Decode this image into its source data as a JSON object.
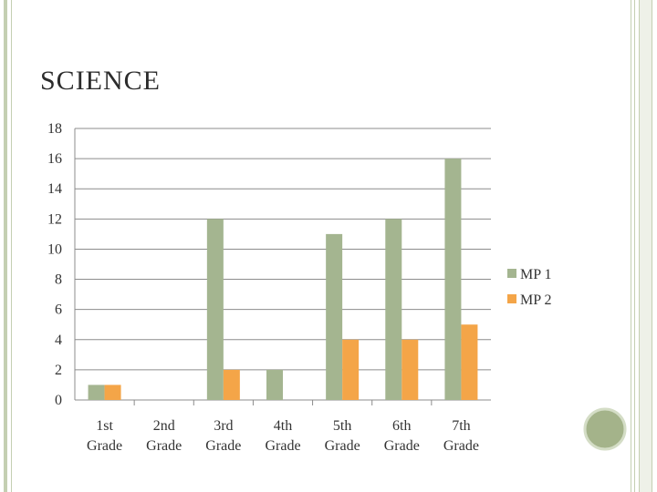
{
  "slide": {
    "title": "SCIENCE"
  },
  "colors": {
    "frame": "#b9c6a4",
    "circle": "#a4b38a",
    "circle_border": "#c8d3b5"
  },
  "chart_data": {
    "type": "bar",
    "title": "",
    "xlabel": "",
    "ylabel": "",
    "ylim": [
      0,
      18
    ],
    "yticks": [
      0,
      2,
      4,
      6,
      8,
      10,
      12,
      14,
      16,
      18
    ],
    "ytick_labels": [
      "0",
      "2",
      "4",
      "6",
      "8",
      "10",
      "12",
      "14",
      "16",
      "18"
    ],
    "categories": [
      [
        "1st",
        "Grade"
      ],
      [
        "2nd",
        "Grade"
      ],
      [
        "3rd",
        "Grade"
      ],
      [
        "4th",
        "Grade"
      ],
      [
        "5th",
        "Grade"
      ],
      [
        "6th",
        "Grade"
      ],
      [
        "7th",
        "Grade"
      ]
    ],
    "series": [
      {
        "name": "MP 1",
        "color": "#a4b590",
        "values": [
          1,
          0,
          12,
          2,
          11,
          12,
          16
        ]
      },
      {
        "name": "MP 2",
        "color": "#f4a548",
        "values": [
          1,
          0,
          2,
          0,
          4,
          4,
          5
        ]
      }
    ],
    "grid": true,
    "legend": "right"
  }
}
